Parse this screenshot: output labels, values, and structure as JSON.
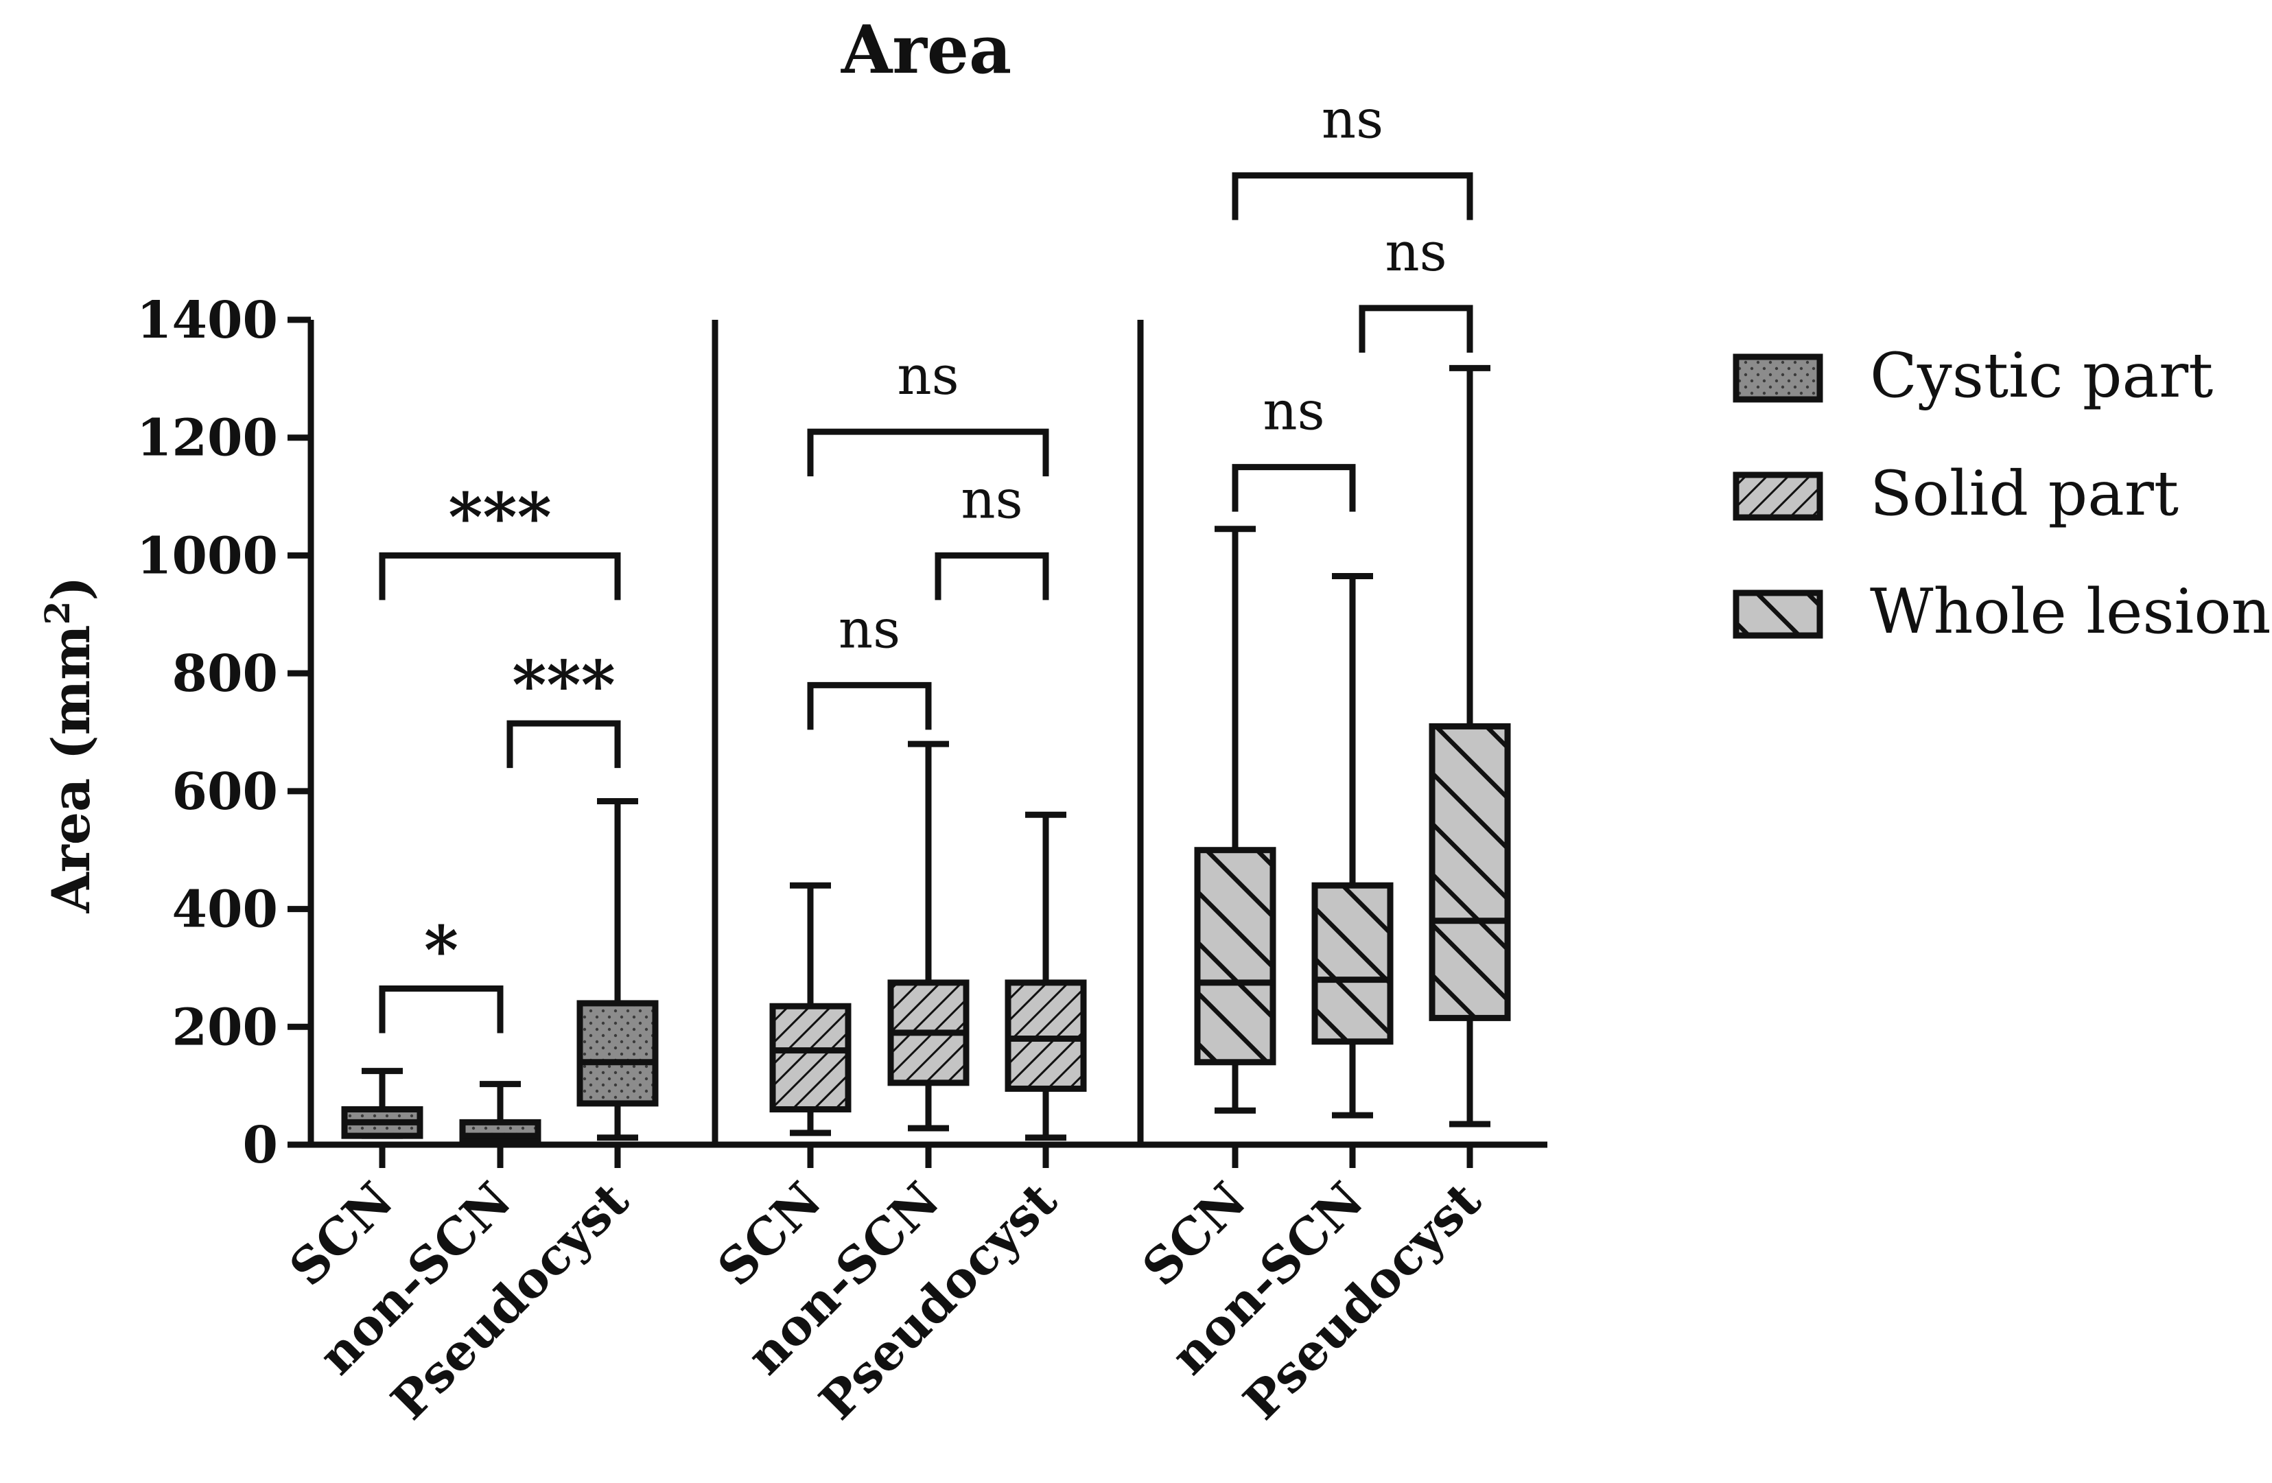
{
  "chart_data": {
    "type": "box",
    "title": "Area",
    "ylabel_main": "Area (mm",
    "ylabel_sup": "2",
    "ylabel_close": ")",
    "ylim": [
      0,
      1400
    ],
    "yticks": [
      0,
      200,
      400,
      600,
      800,
      1000,
      1200,
      1400
    ],
    "categories": [
      "SCN",
      "non-SCN",
      "Pseudocyst"
    ],
    "series": [
      {
        "name": "Cystic part",
        "pattern": "dots",
        "fill": "#8c8c8c",
        "boxes": [
          {
            "category": "SCN",
            "min": 15,
            "q1": 15,
            "median": 38,
            "q3": 60,
            "max": 125
          },
          {
            "category": "non-SCN",
            "min": 0,
            "q1": 5,
            "median": 15,
            "q3": 38,
            "max": 103
          },
          {
            "category": "Pseudocyst",
            "min": 12,
            "q1": 70,
            "median": 140,
            "q3": 240,
            "max": 583
          }
        ],
        "comparisons": [
          {
            "from": "SCN",
            "to": "non-SCN",
            "label": "*",
            "y": 265
          },
          {
            "from": "non-SCN",
            "to": "Pseudocyst",
            "label": "***",
            "y": 715
          },
          {
            "from": "SCN",
            "to": "Pseudocyst",
            "label": "***",
            "y": 1000
          }
        ]
      },
      {
        "name": "Solid part",
        "pattern": "backslash",
        "fill": "#c0c0c0",
        "boxes": [
          {
            "category": "SCN",
            "min": 20,
            "q1": 60,
            "median": 160,
            "q3": 235,
            "max": 440
          },
          {
            "category": "non-SCN",
            "min": 28,
            "q1": 105,
            "median": 190,
            "q3": 275,
            "max": 680
          },
          {
            "category": "Pseudocyst",
            "min": 12,
            "q1": 95,
            "median": 180,
            "q3": 275,
            "max": 560
          }
        ],
        "comparisons": [
          {
            "from": "SCN",
            "to": "non-SCN",
            "label": "ns",
            "y": 780
          },
          {
            "from": "non-SCN",
            "to": "Pseudocyst",
            "label": "ns",
            "y": 1000
          },
          {
            "from": "SCN",
            "to": "Pseudocyst",
            "label": "ns",
            "y": 1210
          }
        ]
      },
      {
        "name": "Whole lesion",
        "pattern": "slash",
        "fill": "#c0c0c0",
        "boxes": [
          {
            "category": "SCN",
            "min": 58,
            "q1": 140,
            "median": 275,
            "q3": 500,
            "max": 1045
          },
          {
            "category": "non-SCN",
            "min": 50,
            "q1": 175,
            "median": 280,
            "q3": 440,
            "max": 965
          },
          {
            "category": "Pseudocyst",
            "min": 35,
            "q1": 215,
            "median": 380,
            "q3": 710,
            "max": 1318
          }
        ],
        "comparisons": [
          {
            "from": "SCN",
            "to": "non-SCN",
            "label": "ns",
            "y": 1150
          },
          {
            "from": "non-SCN",
            "to": "Pseudocyst",
            "label": "ns",
            "y": 1420
          },
          {
            "from": "SCN",
            "to": "Pseudocyst",
            "label": "ns",
            "y": 1645
          }
        ]
      }
    ],
    "legend_position": "right"
  }
}
